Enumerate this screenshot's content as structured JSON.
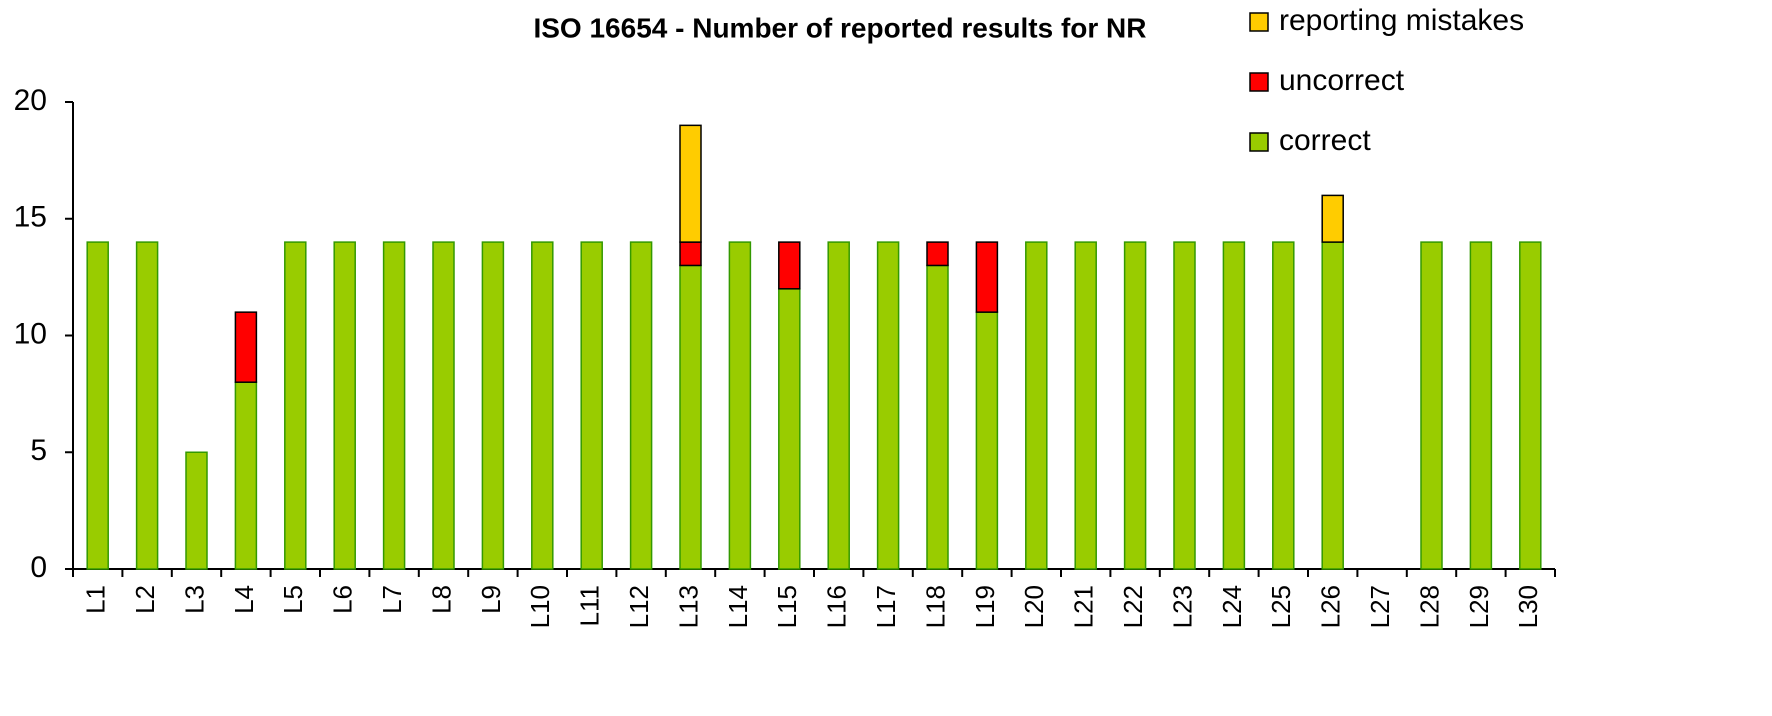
{
  "chart_data": {
    "type": "stacked_bar",
    "title": "ISO 16654 - Number of reported results for NR",
    "categories": [
      "L1",
      "L2",
      "L3",
      "L4",
      "L5",
      "L6",
      "L7",
      "L8",
      "L9",
      "L10",
      "L11",
      "L12",
      "L13",
      "L14",
      "L15",
      "L16",
      "L17",
      "L18",
      "L19",
      "L20",
      "L21",
      "L22",
      "L23",
      "L24",
      "L25",
      "L26",
      "L27",
      "L28",
      "L29",
      "L30"
    ],
    "series": [
      {
        "name": "correct",
        "color": "#99cc00",
        "values": [
          14,
          14,
          5,
          8,
          14,
          14,
          14,
          14,
          14,
          14,
          14,
          14,
          13,
          14,
          12,
          14,
          14,
          13,
          11,
          14,
          14,
          14,
          14,
          14,
          14,
          14,
          0,
          14,
          14,
          14
        ]
      },
      {
        "name": "uncorrect",
        "color": "#ff0000",
        "values": [
          0,
          0,
          0,
          3,
          0,
          0,
          0,
          0,
          0,
          0,
          0,
          0,
          1,
          0,
          2,
          0,
          0,
          1,
          3,
          0,
          0,
          0,
          0,
          0,
          0,
          0,
          0,
          0,
          0,
          0
        ]
      },
      {
        "name": "reporting mistakes",
        "color": "#ffcc00",
        "values": [
          0,
          0,
          0,
          0,
          0,
          0,
          0,
          0,
          0,
          0,
          0,
          0,
          5,
          0,
          0,
          0,
          0,
          0,
          0,
          0,
          0,
          0,
          0,
          0,
          0,
          2,
          0,
          0,
          0,
          0
        ]
      }
    ],
    "ylim": [
      0,
      20
    ],
    "yticks": [
      0,
      5,
      10,
      15,
      20
    ],
    "grid": false
  }
}
